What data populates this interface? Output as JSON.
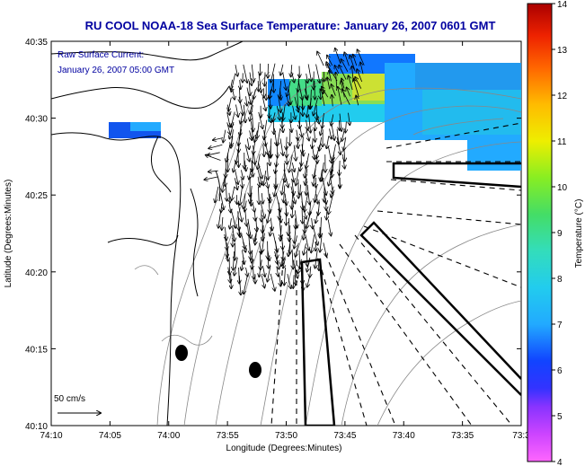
{
  "title": "RU COOL  NOAA-18  Sea Surface Temperature:  January 26, 2007 0601 GMT",
  "annotation": {
    "line1": "Raw Surface Current:",
    "line2": "January 26, 2007 05:00 GMT"
  },
  "scale_label": "50 cm/s",
  "axes": {
    "xlabel": "Longitude (Degrees:Minutes)",
    "ylabel": "Latitude (Degrees:Minutes)",
    "x_ticks": [
      "74:10",
      "74:05",
      "74:00",
      "73:55",
      "73:50",
      "73:45",
      "73:40",
      "73:35",
      "73:3"
    ],
    "y_ticks": [
      "40:35",
      "40:30",
      "40:25",
      "40:20",
      "40:15",
      "40:10"
    ]
  },
  "colorbar": {
    "label": "Temperature (°C)",
    "min": 4,
    "max": 14,
    "ticks": [
      "14",
      "13",
      "12",
      "11",
      "10",
      "9",
      "8",
      "7",
      "6",
      "5",
      "4"
    ]
  },
  "colors": {
    "title": "#0000a0",
    "annotation": "#0000a0",
    "coast": "#000000",
    "bathymetry": "#777777"
  }
}
